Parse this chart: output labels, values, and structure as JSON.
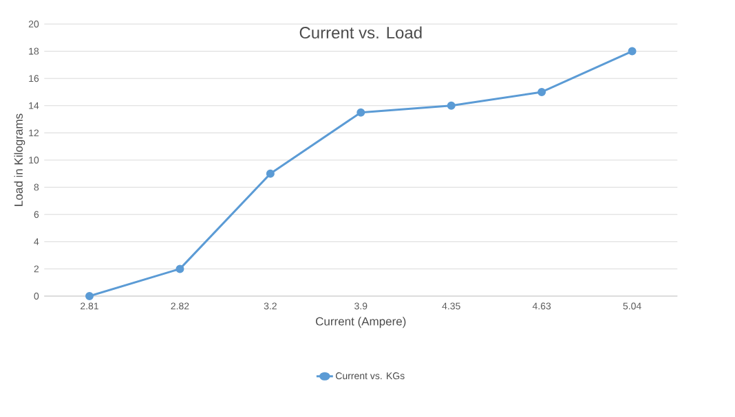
{
  "chart_data": {
    "type": "line",
    "title": "Current vs. Load",
    "xlabel": "Current (Ampere)",
    "ylabel": "Load in Kilograms",
    "categories": [
      "2.81",
      "2.82",
      "3.2",
      "3.9",
      "4.35",
      "4.63",
      "5.04"
    ],
    "series": [
      {
        "name": "Current vs. KGs",
        "color": "#5b9bd5",
        "values": [
          0,
          2,
          9,
          13.5,
          14,
          15,
          18
        ]
      }
    ],
    "ylim": [
      0,
      20
    ],
    "yticks": [
      0,
      2,
      4,
      6,
      8,
      10,
      12,
      14,
      16,
      18,
      20
    ],
    "grid": "y",
    "legend": "bottom",
    "marker": "circle",
    "line_style": "solid"
  }
}
